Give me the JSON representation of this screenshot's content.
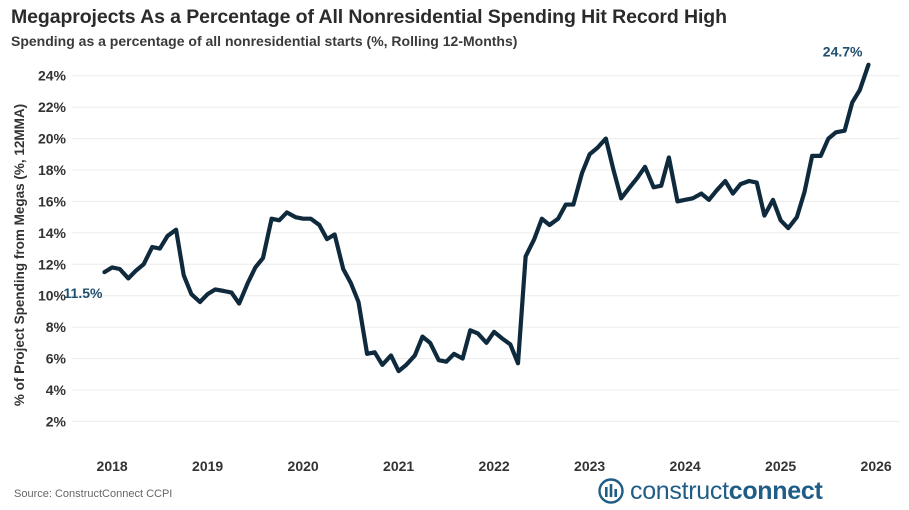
{
  "title": "Megaprojects As a Percentage of All Nonresidential Spending Hit Record High",
  "subtitle": "Spending as a percentage of all nonresidential starts (%, Rolling 12-Months)",
  "source": "Source: ConstructConnect CCPI",
  "logo": {
    "part1": "construct",
    "part2": "connect",
    "icon": "construct-connect-logo-icon",
    "color": "#1f5d86"
  },
  "colors": {
    "line": "#0f2a3d",
    "annotation": "#1f4e6e",
    "grid": "#ececec"
  },
  "chart_data": {
    "type": "line",
    "title": "Megaprojects As a Percentage of All Nonresidential Spending Hit Record High",
    "ylabel": "% of Project Spending from Megas (%, 12MMA)",
    "xlabel": "",
    "ylim": [
      0.5,
      25
    ],
    "xlim": [
      2017.58,
      2026.25
    ],
    "yticks": [
      2,
      4,
      6,
      8,
      10,
      12,
      14,
      16,
      18,
      20,
      22,
      24
    ],
    "ytick_labels": [
      "2%",
      "4%",
      "6%",
      "8%",
      "10%",
      "12%",
      "14%",
      "16%",
      "18%",
      "20%",
      "22%",
      "24%"
    ],
    "xticks": [
      2018,
      2019,
      2020,
      2021,
      2022,
      2023,
      2024,
      2025,
      2026
    ],
    "xtick_labels": [
      "2018",
      "2019",
      "2020",
      "2021",
      "2022",
      "2023",
      "2024",
      "2025",
      "2026"
    ],
    "grid": "horizontal",
    "annotations": [
      {
        "text": "11.5%",
        "x": 2017.92,
        "y": 11.5,
        "placement": "below-left"
      },
      {
        "text": "24.7%",
        "x": 2025.92,
        "y": 24.7,
        "placement": "above-left"
      }
    ],
    "series": [
      {
        "x": [
          2017.92,
          2018.0,
          2018.08,
          2018.17,
          2018.25,
          2018.33,
          2018.42,
          2018.5,
          2018.58,
          2018.67,
          2018.75,
          2018.83,
          2018.92,
          2019.0,
          2019.08,
          2019.17,
          2019.25,
          2019.33,
          2019.42,
          2019.5,
          2019.58,
          2019.67,
          2019.75,
          2019.83,
          2019.92,
          2020.0,
          2020.08,
          2020.17,
          2020.25,
          2020.33,
          2020.42,
          2020.5,
          2020.58,
          2020.67,
          2020.75,
          2020.83,
          2020.92,
          2021.0,
          2021.08,
          2021.17,
          2021.25,
          2021.33,
          2021.42,
          2021.5,
          2021.58,
          2021.67,
          2021.75,
          2021.83,
          2021.92,
          2022.0,
          2022.08,
          2022.17,
          2022.25,
          2022.33,
          2022.42,
          2022.5,
          2022.58,
          2022.67,
          2022.75,
          2022.83,
          2022.92,
          2023.0,
          2023.08,
          2023.17,
          2023.25,
          2023.33,
          2023.42,
          2023.5,
          2023.58,
          2023.67,
          2023.75,
          2023.83,
          2023.92,
          2024.0,
          2024.08,
          2024.17,
          2024.25,
          2024.33,
          2024.42,
          2024.5,
          2024.58,
          2024.67,
          2024.75,
          2024.83,
          2024.92,
          2025.0,
          2025.08,
          2025.17,
          2025.25,
          2025.33,
          2025.42,
          2025.5,
          2025.58,
          2025.67,
          2025.75,
          2025.83,
          2025.92
        ],
        "values": [
          11.5,
          11.8,
          11.7,
          11.1,
          11.6,
          12.0,
          13.1,
          13.0,
          13.8,
          14.2,
          11.3,
          10.1,
          9.6,
          10.1,
          10.4,
          10.3,
          10.2,
          9.5,
          10.8,
          11.8,
          12.4,
          14.9,
          14.8,
          15.3,
          15.0,
          14.9,
          14.9,
          14.5,
          13.6,
          13.9,
          11.7,
          10.8,
          9.6,
          6.3,
          6.4,
          5.6,
          6.2,
          5.2,
          5.6,
          6.2,
          7.4,
          7.0,
          5.9,
          5.8,
          6.3,
          6.0,
          7.8,
          7.6,
          7.0,
          7.7,
          7.3,
          6.9,
          5.7,
          12.5,
          13.6,
          14.9,
          14.5,
          14.9,
          15.8,
          15.8,
          17.8,
          19.0,
          19.4,
          20.0,
          18.0,
          16.2,
          16.9,
          17.5,
          18.2,
          16.9,
          17.0,
          18.8,
          16.0,
          16.1,
          16.2,
          16.5,
          16.1,
          16.7,
          17.3,
          16.5,
          17.1,
          17.3,
          17.2,
          15.1,
          16.1,
          14.8,
          14.3,
          15.0,
          16.6,
          18.9,
          18.9,
          20.0,
          20.4,
          20.5,
          22.3,
          23.1,
          24.7
        ]
      }
    ]
  }
}
